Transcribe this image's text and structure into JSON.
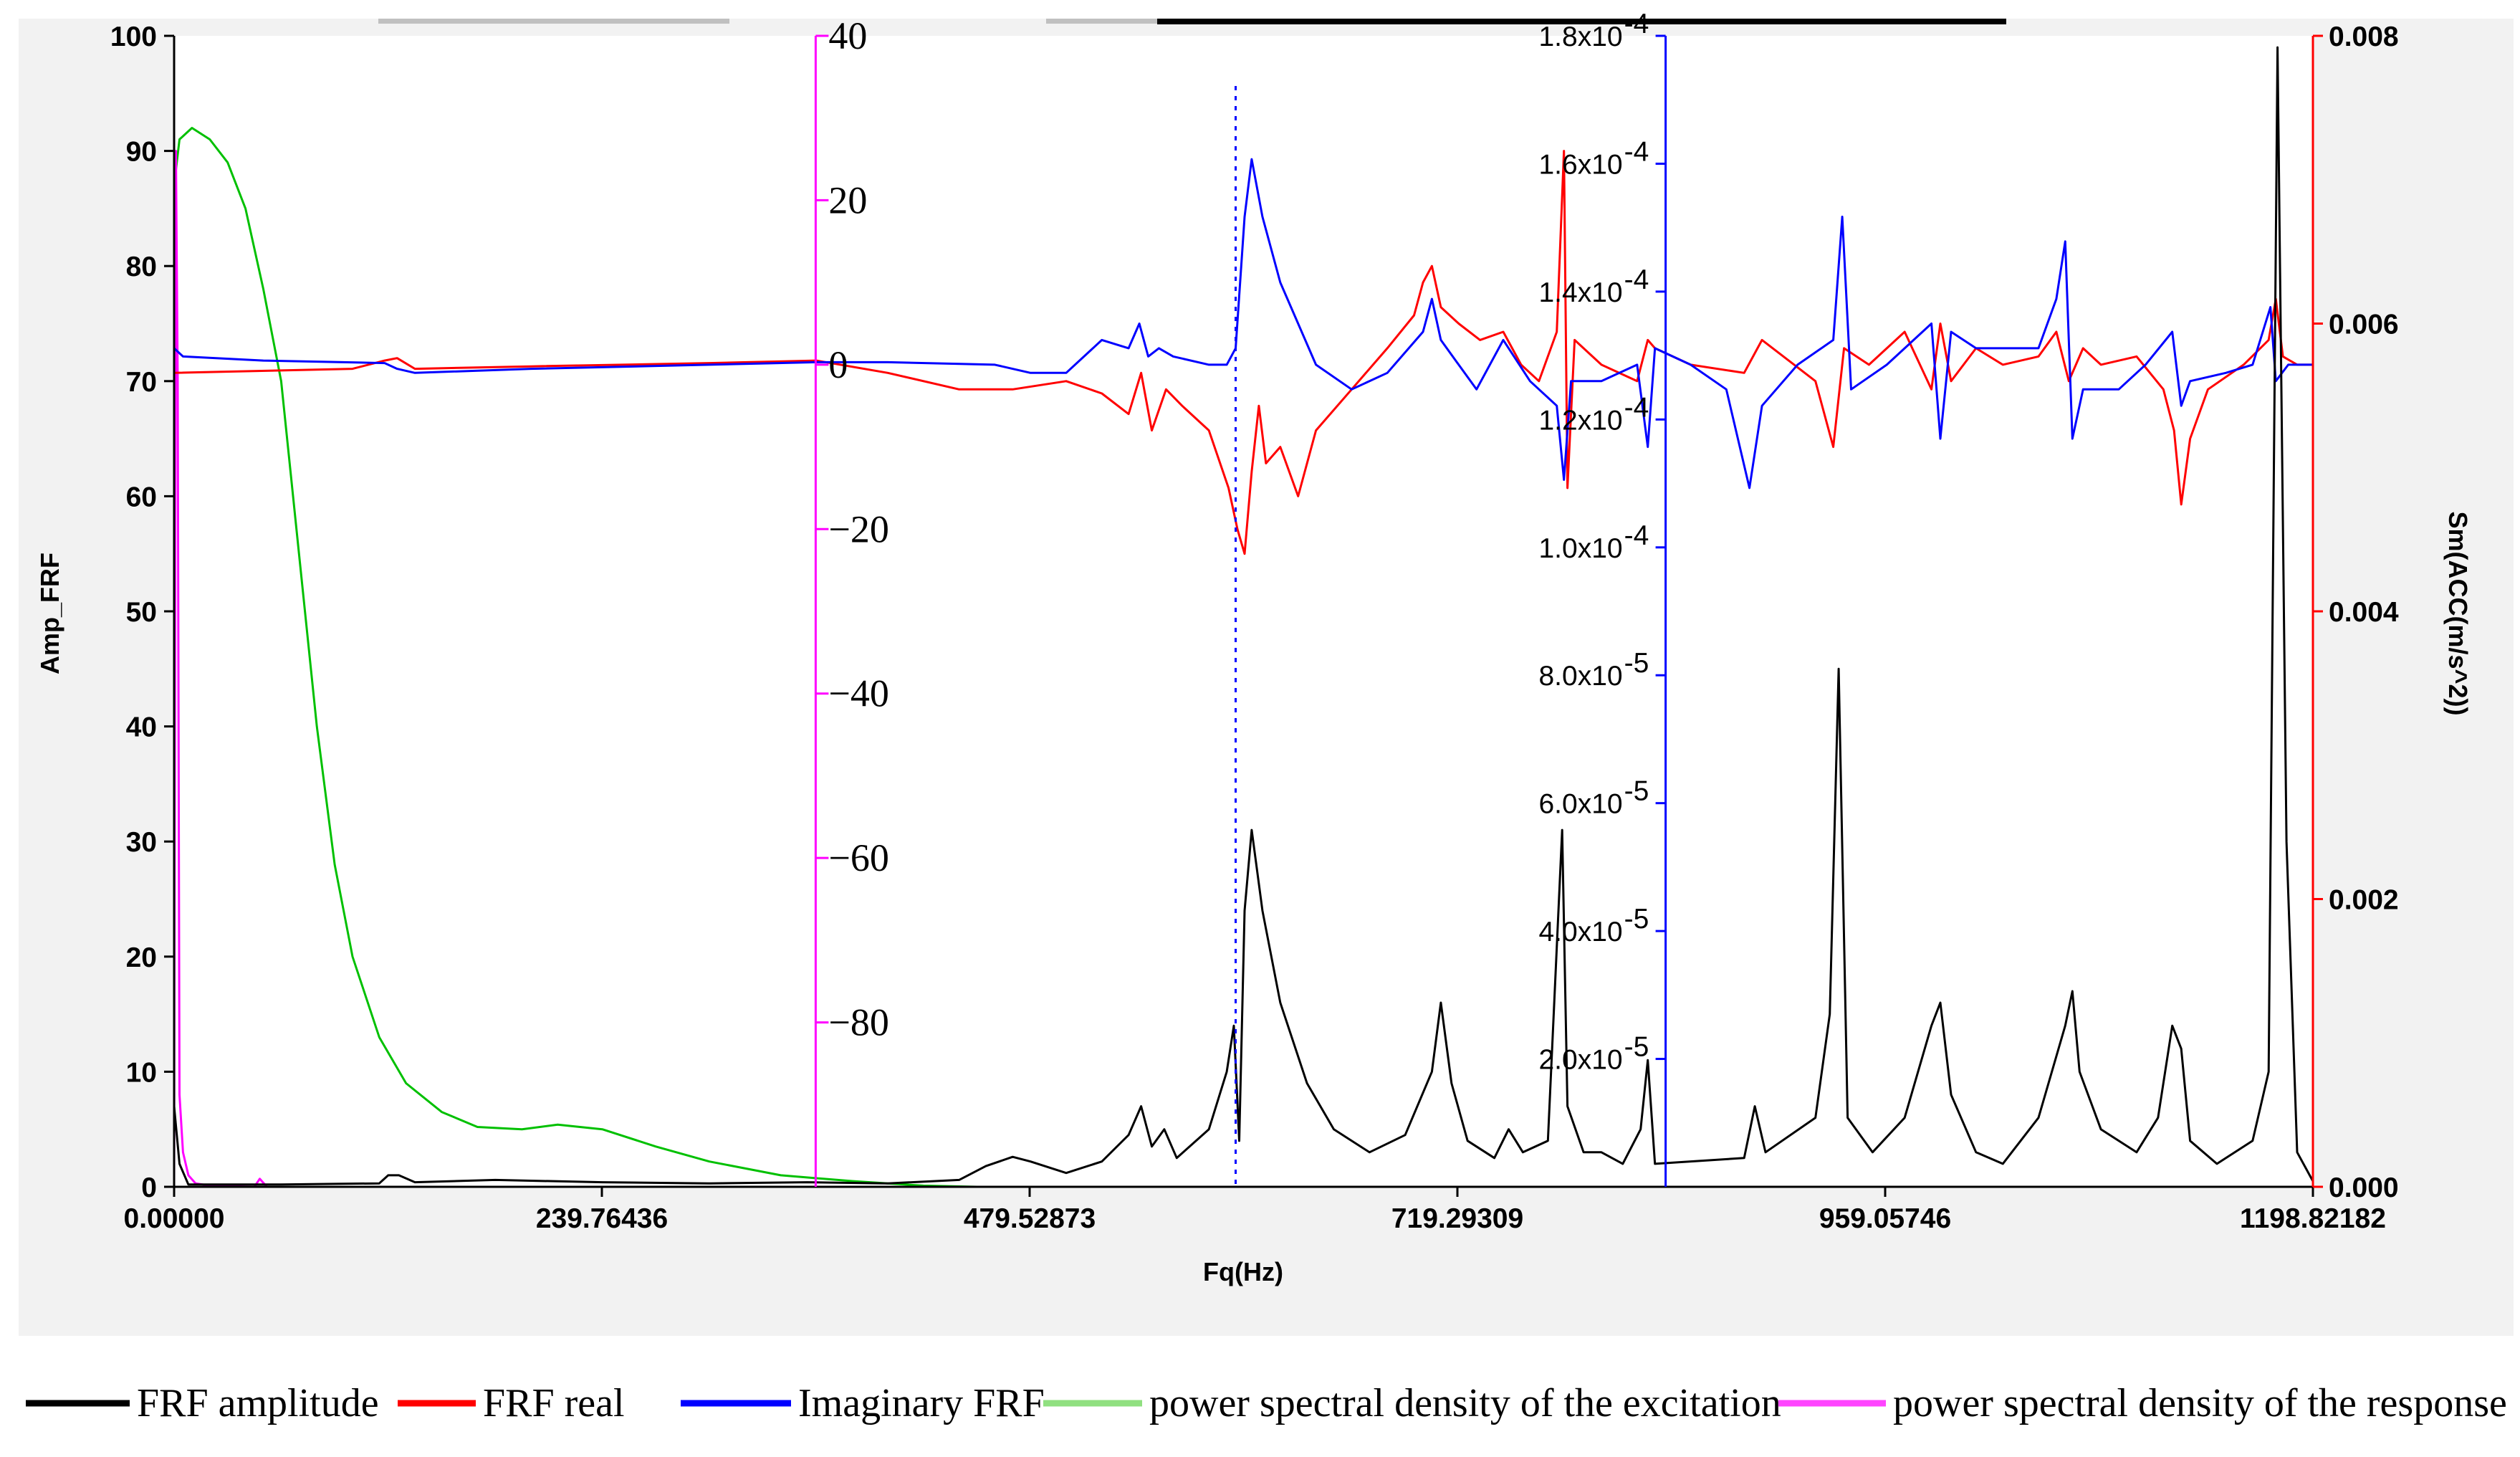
{
  "chart_data": {
    "type": "line",
    "x_axis": {
      "label": "Fq(Hz)",
      "range": [
        0,
        1198.82182
      ],
      "tick_labels": [
        "0.00000",
        "239.76436",
        "479.52873",
        "719.29309",
        "959.05746",
        "1198.82182"
      ]
    },
    "y_left": {
      "label": "Amp_FRF",
      "range": [
        0,
        100
      ],
      "tick_labels": [
        "0",
        "10",
        "20",
        "30",
        "40",
        "50",
        "60",
        "70",
        "80",
        "90",
        "100"
      ]
    },
    "y_magenta": {
      "range": [
        -100,
        40
      ],
      "tick_labels": [
        "40",
        "20",
        "0",
        "−20",
        "−40",
        "−60",
        "−80"
      ],
      "color": "#ff00ff",
      "axis_at_x": 359.6
    },
    "y_blue": {
      "range": [
        0,
        0.00018
      ],
      "tick_labels": [
        "1.8x10",
        "1.6x10",
        "1.4x10",
        "1.2x10",
        "1.0x10",
        "8.0x10",
        "6.0x10",
        "4.0x10",
        "2.0x10"
      ],
      "tick_exponents": [
        "-4",
        "-4",
        "-4",
        "-4",
        "-4",
        "-5",
        "-5",
        "-5",
        "-5"
      ],
      "color": "#0000ff",
      "axis_at_x": 836
    },
    "y_right": {
      "label": "Sm(ACC(m/s^2))",
      "range": [
        0,
        0.008
      ],
      "tick_labels": [
        "0.008",
        "0.006",
        "0.004",
        "0.002",
        "0.000"
      ],
      "color": "#ff0000"
    },
    "marker_line": {
      "x": 595,
      "style": "dotted",
      "color": "#0000ff"
    },
    "series": [
      {
        "name": "FRF amplitude",
        "color": "#000000",
        "axis": "y_left",
        "points": [
          [
            0,
            7
          ],
          [
            3,
            2
          ],
          [
            8,
            0.2
          ],
          [
            60,
            0.2
          ],
          [
            115,
            0.3
          ],
          [
            120,
            1
          ],
          [
            126,
            1
          ],
          [
            135,
            0.4
          ],
          [
            180,
            0.6
          ],
          [
            240,
            0.4
          ],
          [
            300,
            0.3
          ],
          [
            355,
            0.4
          ],
          [
            400,
            0.3
          ],
          [
            440,
            0.6
          ],
          [
            455,
            1.8
          ],
          [
            470,
            2.6
          ],
          [
            480,
            2.2
          ],
          [
            500,
            1.2
          ],
          [
            520,
            2.2
          ],
          [
            535,
            4.5
          ],
          [
            542,
            7
          ],
          [
            548,
            3.5
          ],
          [
            555,
            5
          ],
          [
            562,
            2.5
          ],
          [
            580,
            5
          ],
          [
            590,
            10
          ],
          [
            594,
            14
          ],
          [
            597,
            4
          ],
          [
            600,
            24
          ],
          [
            604,
            31
          ],
          [
            610,
            24
          ],
          [
            620,
            16
          ],
          [
            635,
            9
          ],
          [
            650,
            5
          ],
          [
            670,
            3
          ],
          [
            690,
            4.5
          ],
          [
            705,
            10
          ],
          [
            710,
            16
          ],
          [
            716,
            9
          ],
          [
            725,
            4
          ],
          [
            740,
            2.5
          ],
          [
            748,
            5
          ],
          [
            756,
            3
          ],
          [
            770,
            4
          ],
          [
            778,
            31
          ],
          [
            781,
            7
          ],
          [
            790,
            3
          ],
          [
            800,
            3
          ],
          [
            812,
            2
          ],
          [
            822,
            5
          ],
          [
            826,
            11
          ],
          [
            830,
            2
          ],
          [
            880,
            2.5
          ],
          [
            886,
            7
          ],
          [
            892,
            3
          ],
          [
            920,
            6
          ],
          [
            928,
            15
          ],
          [
            933,
            45
          ],
          [
            938,
            6
          ],
          [
            952,
            3
          ],
          [
            970,
            6
          ],
          [
            985,
            14
          ],
          [
            990,
            16
          ],
          [
            996,
            8
          ],
          [
            1010,
            3
          ],
          [
            1025,
            2
          ],
          [
            1045,
            6
          ],
          [
            1060,
            14
          ],
          [
            1064,
            17
          ],
          [
            1068,
            10
          ],
          [
            1080,
            5
          ],
          [
            1100,
            3
          ],
          [
            1112,
            6
          ],
          [
            1120,
            14
          ],
          [
            1125,
            12
          ],
          [
            1130,
            4
          ],
          [
            1145,
            2
          ],
          [
            1165,
            4
          ],
          [
            1174,
            10
          ],
          [
            1179,
            99
          ],
          [
            1184,
            30
          ],
          [
            1190,
            3
          ],
          [
            1198.8,
            0.5
          ]
        ]
      },
      {
        "name": "FRF real",
        "color": "#ff0000",
        "axis": "y_magenta",
        "points": [
          [
            0,
            -1
          ],
          [
            100,
            -0.5
          ],
          [
            118,
            0.5
          ],
          [
            125,
            0.8
          ],
          [
            135,
            -0.5
          ],
          [
            200,
            -0.2
          ],
          [
            300,
            0.2
          ],
          [
            360,
            0.5
          ],
          [
            400,
            -1
          ],
          [
            440,
            -3
          ],
          [
            470,
            -3
          ],
          [
            500,
            -2
          ],
          [
            520,
            -3.5
          ],
          [
            535,
            -6
          ],
          [
            542,
            -1
          ],
          [
            548,
            -8
          ],
          [
            556,
            -3
          ],
          [
            565,
            -5
          ],
          [
            580,
            -8
          ],
          [
            591,
            -15
          ],
          [
            596,
            -20
          ],
          [
            600,
            -23
          ],
          [
            604,
            -13
          ],
          [
            608,
            -5
          ],
          [
            612,
            -12
          ],
          [
            620,
            -10
          ],
          [
            630,
            -16
          ],
          [
            640,
            -8
          ],
          [
            660,
            -3
          ],
          [
            680,
            2
          ],
          [
            695,
            6
          ],
          [
            700,
            10
          ],
          [
            705,
            12
          ],
          [
            710,
            7
          ],
          [
            720,
            5
          ],
          [
            732,
            3
          ],
          [
            745,
            4
          ],
          [
            755,
            0
          ],
          [
            765,
            -2
          ],
          [
            775,
            4
          ],
          [
            779,
            26
          ],
          [
            781,
            -15
          ],
          [
            785,
            3
          ],
          [
            800,
            0
          ],
          [
            820,
            -2
          ],
          [
            826,
            3
          ],
          [
            830,
            2
          ],
          [
            850,
            0
          ],
          [
            880,
            -1
          ],
          [
            890,
            3
          ],
          [
            920,
            -2
          ],
          [
            930,
            -10
          ],
          [
            936,
            2
          ],
          [
            950,
            0
          ],
          [
            970,
            4
          ],
          [
            985,
            -3
          ],
          [
            990,
            5
          ],
          [
            996,
            -2
          ],
          [
            1010,
            2
          ],
          [
            1025,
            0
          ],
          [
            1045,
            1
          ],
          [
            1055,
            4
          ],
          [
            1062,
            -2
          ],
          [
            1070,
            2
          ],
          [
            1080,
            0
          ],
          [
            1100,
            1
          ],
          [
            1115,
            -3
          ],
          [
            1121,
            -8
          ],
          [
            1125,
            -17
          ],
          [
            1130,
            -9
          ],
          [
            1140,
            -3
          ],
          [
            1160,
            0
          ],
          [
            1174,
            3
          ],
          [
            1178,
            8
          ],
          [
            1182,
            1
          ],
          [
            1190,
            0
          ],
          [
            1198.8,
            0
          ]
        ]
      },
      {
        "name": "Imaginary FRF",
        "color": "#0000ff",
        "axis": "y_magenta",
        "points": [
          [
            0,
            2
          ],
          [
            5,
            1
          ],
          [
            50,
            0.5
          ],
          [
            118,
            0.2
          ],
          [
            125,
            -0.5
          ],
          [
            135,
            -1
          ],
          [
            200,
            -0.5
          ],
          [
            300,
            0
          ],
          [
            360,
            0.3
          ],
          [
            400,
            0.3
          ],
          [
            460,
            0
          ],
          [
            480,
            -1
          ],
          [
            500,
            -1
          ],
          [
            520,
            3
          ],
          [
            535,
            2
          ],
          [
            541,
            5
          ],
          [
            546,
            1
          ],
          [
            552,
            2
          ],
          [
            560,
            1
          ],
          [
            580,
            0
          ],
          [
            590,
            0
          ],
          [
            595,
            2
          ],
          [
            600,
            18
          ],
          [
            604,
            25
          ],
          [
            610,
            18
          ],
          [
            620,
            10
          ],
          [
            630,
            5
          ],
          [
            640,
            0
          ],
          [
            660,
            -3
          ],
          [
            680,
            -1
          ],
          [
            700,
            4
          ],
          [
            705,
            8
          ],
          [
            710,
            3
          ],
          [
            720,
            0
          ],
          [
            730,
            -3
          ],
          [
            745,
            3
          ],
          [
            760,
            -2
          ],
          [
            775,
            -5
          ],
          [
            779,
            -14
          ],
          [
            783,
            -2
          ],
          [
            800,
            -2
          ],
          [
            820,
            0
          ],
          [
            826,
            -10
          ],
          [
            830,
            2
          ],
          [
            850,
            0
          ],
          [
            870,
            -3
          ],
          [
            883,
            -15
          ],
          [
            890,
            -5
          ],
          [
            910,
            0
          ],
          [
            930,
            3
          ],
          [
            935,
            18
          ],
          [
            940,
            -3
          ],
          [
            960,
            0
          ],
          [
            985,
            5
          ],
          [
            990,
            -9
          ],
          [
            996,
            4
          ],
          [
            1010,
            2
          ],
          [
            1025,
            2
          ],
          [
            1045,
            2
          ],
          [
            1055,
            8
          ],
          [
            1060,
            15
          ],
          [
            1064,
            -9
          ],
          [
            1070,
            -3
          ],
          [
            1090,
            -3
          ],
          [
            1105,
            0
          ],
          [
            1120,
            4
          ],
          [
            1125,
            -5
          ],
          [
            1130,
            -2
          ],
          [
            1150,
            -1
          ],
          [
            1165,
            0
          ],
          [
            1175,
            7
          ],
          [
            1178,
            -2
          ],
          [
            1185,
            0
          ],
          [
            1198.8,
            0
          ]
        ]
      },
      {
        "name": "power spectral density of the excitation",
        "color": "#00c000",
        "axis": "y_left",
        "points": [
          [
            0,
            87
          ],
          [
            3,
            91
          ],
          [
            10,
            92
          ],
          [
            20,
            91
          ],
          [
            30,
            89
          ],
          [
            40,
            85
          ],
          [
            50,
            78
          ],
          [
            60,
            70
          ],
          [
            70,
            55
          ],
          [
            80,
            40
          ],
          [
            90,
            28
          ],
          [
            100,
            20
          ],
          [
            115,
            13
          ],
          [
            130,
            9
          ],
          [
            150,
            6.5
          ],
          [
            170,
            5.2
          ],
          [
            195,
            5
          ],
          [
            215,
            5.4
          ],
          [
            240,
            5
          ],
          [
            270,
            3.5
          ],
          [
            300,
            2.2
          ],
          [
            340,
            1
          ],
          [
            380,
            0.5
          ],
          [
            400,
            0.3
          ],
          [
            420,
            0.1
          ],
          [
            450,
            0
          ],
          [
            1198.8,
            0
          ]
        ]
      },
      {
        "name": "power spectral density of the response",
        "color": "#ff00ff",
        "axis": "y_left",
        "points": [
          [
            0,
            0
          ],
          [
            1,
            90
          ],
          [
            2,
            70
          ],
          [
            3,
            8
          ],
          [
            5,
            3
          ],
          [
            8,
            1
          ],
          [
            12,
            0.3
          ],
          [
            20,
            0.1
          ],
          [
            45,
            0
          ],
          [
            48,
            0.7
          ],
          [
            52,
            0
          ],
          [
            1198.8,
            0
          ]
        ]
      }
    ],
    "legend": [
      {
        "label": "FRF amplitude",
        "color": "#000000"
      },
      {
        "label": "FRF real",
        "color": "#ff0000"
      },
      {
        "label": "Imaginary FRF",
        "color": "#0000ff"
      },
      {
        "label": "power spectral density of the excitation",
        "color": "#90e080"
      },
      {
        "label": "power spectral density of the response",
        "color": "#ff44ff"
      }
    ]
  }
}
